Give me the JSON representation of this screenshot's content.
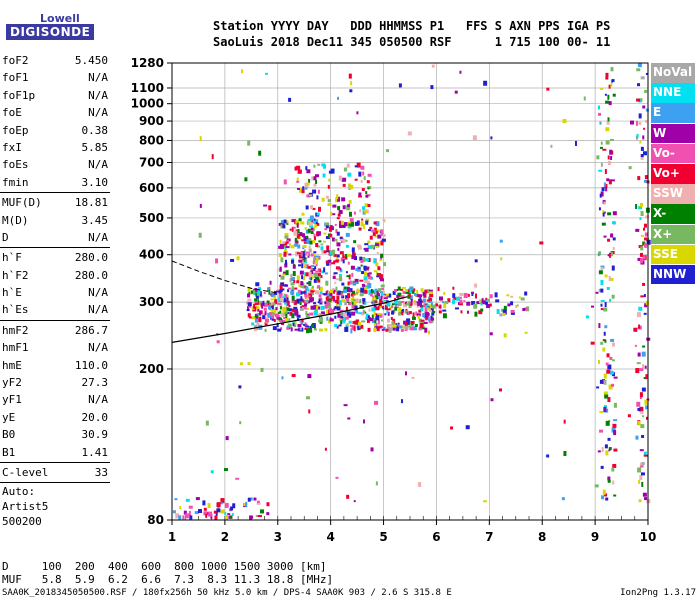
{
  "logo": {
    "top": "Lowell",
    "main": "DIGISONDE"
  },
  "header": {
    "line1": "Station YYYY DAY   DDD HHMMSS P1   FFS S AXN PPS IGA PS",
    "line2": "SaoLuis 2018 Dec11 345 050500 RSF      1 715 100 00- 11"
  },
  "params": {
    "group1": [
      {
        "k": "foF2",
        "v": "5.450"
      },
      {
        "k": "foF1",
        "v": "N/A"
      },
      {
        "k": "foF1p",
        "v": "N/A"
      },
      {
        "k": "foE",
        "v": "N/A"
      },
      {
        "k": "foEp",
        "v": "0.38"
      },
      {
        "k": "fxI",
        "v": "5.85"
      },
      {
        "k": "foEs",
        "v": "N/A"
      },
      {
        "k": "fmin",
        "v": "3.10"
      }
    ],
    "group2": [
      {
        "k": "MUF(D)",
        "v": "18.81"
      },
      {
        "k": "M(D)",
        "v": "3.45"
      },
      {
        "k": "D",
        "v": "N/A"
      }
    ],
    "group3": [
      {
        "k": "h`F",
        "v": "280.0"
      },
      {
        "k": "h`F2",
        "v": "280.0"
      },
      {
        "k": "h`E",
        "v": "N/A"
      },
      {
        "k": "h`Es",
        "v": "N/A"
      }
    ],
    "group4": [
      {
        "k": "hmF2",
        "v": "286.7"
      },
      {
        "k": "hmF1",
        "v": "N/A"
      },
      {
        "k": "hmE",
        "v": "110.0"
      },
      {
        "k": "yF2",
        "v": "27.3"
      },
      {
        "k": "yF1",
        "v": "N/A"
      },
      {
        "k": "yE",
        "v": "20.0"
      },
      {
        "k": "B0",
        "v": "30.9"
      },
      {
        "k": "B1",
        "v": "1.41"
      }
    ],
    "group5": [
      {
        "k": "C-level",
        "v": "33"
      }
    ],
    "group6": [
      "Auto:",
      "Artist5",
      "500200"
    ]
  },
  "legend": [
    {
      "label": "NoVal",
      "color": "#a8a8a8"
    },
    {
      "label": "NNE",
      "color": "#00e0f0"
    },
    {
      "label": "E",
      "color": "#3ea0f0"
    },
    {
      "label": "W",
      "color": "#a000a8"
    },
    {
      "label": "Vo-",
      "color": "#f050b0"
    },
    {
      "label": "Vo+",
      "color": "#f00030"
    },
    {
      "label": "SSW",
      "color": "#f0b0b0"
    },
    {
      "label": "X-",
      "color": "#008000"
    },
    {
      "label": "X+",
      "color": "#78b860"
    },
    {
      "label": "SSE",
      "color": "#d8d800"
    },
    {
      "label": "NNW",
      "color": "#2020d0"
    }
  ],
  "chart_data": {
    "type": "scatter",
    "xlabel": "",
    "ylabel": "",
    "xlim": [
      1,
      10
    ],
    "ylim": [
      80,
      1280
    ],
    "ylog": true,
    "xticks": [
      "1",
      "2",
      "3",
      "4",
      "5",
      "6",
      "7",
      "8",
      "9",
      "10"
    ],
    "yticks": [
      80,
      200,
      300,
      400,
      500,
      600,
      700,
      800,
      900,
      1000,
      1100,
      1280
    ],
    "grid": true,
    "clusters": [
      {
        "name": "F-trace",
        "xmin": 2.4,
        "xmax": 5.9,
        "ymin": 255,
        "ymax": 330,
        "count": 650
      },
      {
        "name": "F-spread",
        "xmin": 3.0,
        "xmax": 5.0,
        "ymin": 320,
        "ymax": 500,
        "count": 420
      },
      {
        "name": "F-tall",
        "xmin": 3.3,
        "xmax": 4.7,
        "ymin": 480,
        "ymax": 700,
        "count": 110
      },
      {
        "name": "F-tail",
        "xmin": 5.8,
        "xmax": 7.7,
        "ymin": 280,
        "ymax": 320,
        "count": 80
      },
      {
        "name": "low-noise",
        "xmin": 1.0,
        "xmax": 2.8,
        "ymin": 82,
        "ymax": 92,
        "count": 60
      },
      {
        "name": "hf-band",
        "xmin": 9.05,
        "xmax": 9.35,
        "ymin": 90,
        "ymax": 1280,
        "count": 140
      },
      {
        "name": "edge-band",
        "xmin": 9.75,
        "xmax": 9.98,
        "ymin": 90,
        "ymax": 1280,
        "count": 110
      },
      {
        "name": "scatter",
        "xmin": 1.5,
        "xmax": 9.9,
        "ymin": 90,
        "ymax": 1280,
        "count": 120
      }
    ],
    "profile_curve": [
      [
        1.0,
        235
      ],
      [
        2.0,
        248
      ],
      [
        3.0,
        263
      ],
      [
        4.0,
        279
      ],
      [
        5.0,
        298
      ],
      [
        5.45,
        310
      ]
    ],
    "dashed_curve": [
      [
        1.0,
        385
      ],
      [
        1.5,
        362
      ],
      [
        2.0,
        342
      ],
      [
        2.5,
        326
      ],
      [
        3.0,
        317
      ]
    ]
  },
  "bottom": {
    "d_row": "D     100  200  400  600  800 1000 1500 3000 [km]",
    "muf_row": "MUF   5.8  5.9  6.2  6.6  7.3  8.3 11.3 18.8 [MHz]"
  },
  "footer": {
    "left": "SAA0K_2018345050500.RSF / 180fx256h 50 kHz 5.0 km / DPS-4 SAA0K 903 / 2.6 S 315.8 E",
    "right": "Ion2Png 1.3.17"
  }
}
